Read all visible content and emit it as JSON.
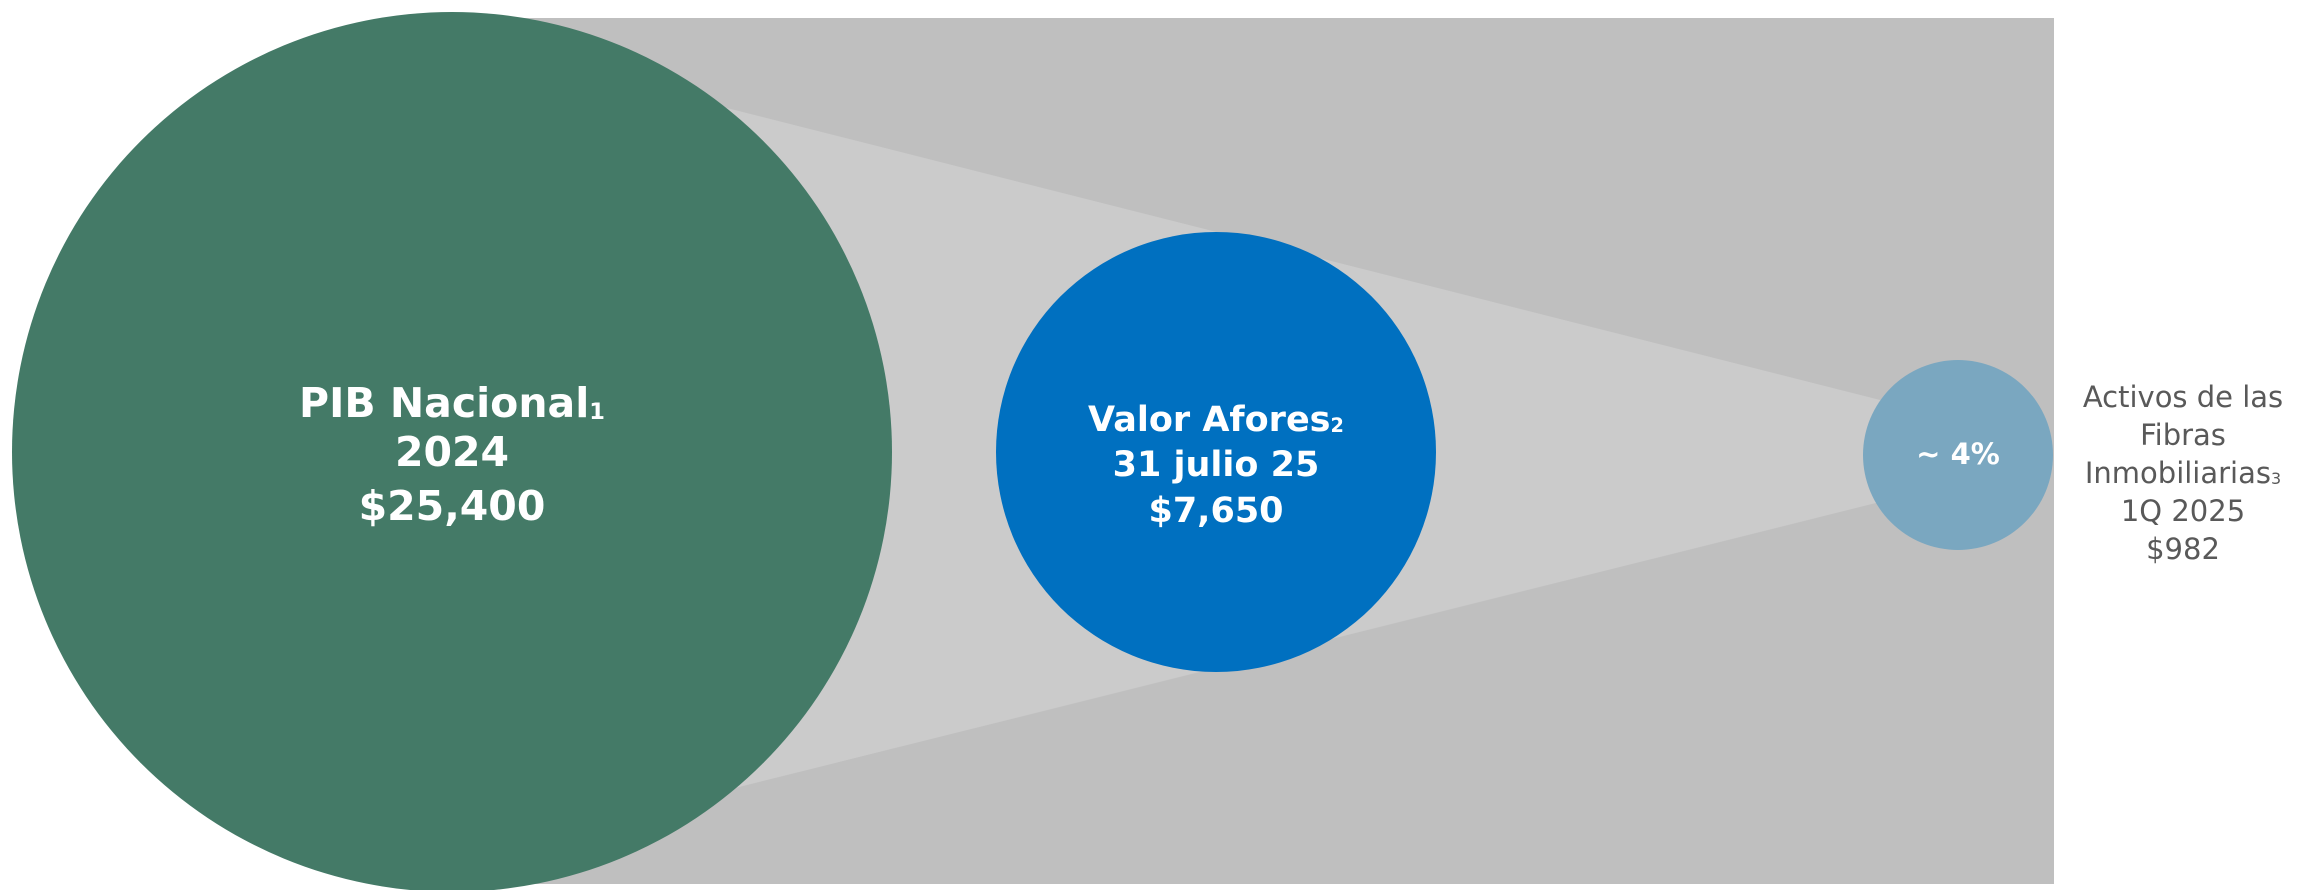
{
  "nodes": [
    {
      "label": "PIB Nacional",
      "note": "1",
      "period": "2024",
      "value": "$25,400"
    },
    {
      "label": "Valor Afores",
      "note": "2",
      "period": "31 julio 25",
      "value": "$7,650"
    },
    {
      "label": [
        "Activos de las",
        "Fibras",
        "Inmobiliarias"
      ],
      "note": "3",
      "period": "1Q 2025",
      "value": "$982"
    }
  ],
  "ratio": "~ 4%"
}
